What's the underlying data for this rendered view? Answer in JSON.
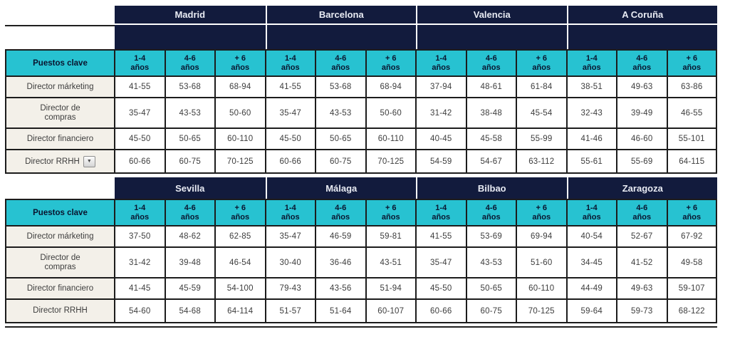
{
  "theme": {
    "header_navy": "#121b3d",
    "header_cyan": "#27c2d1",
    "label_beige": "#f3f0e9",
    "grid_black": "#1c1c1c"
  },
  "icons": {
    "dropdown_arrow": "▼"
  },
  "table": {
    "row_header_label": "Puestos clave",
    "period_headers": [
      "1-4\naños",
      "4-6\naños",
      "+ 6\naños"
    ],
    "sections": [
      {
        "cities": [
          "Madrid",
          "Barcelona",
          "Valencia",
          "A Coruña"
        ],
        "rows": [
          {
            "label": "Director márketing",
            "values": [
              "41-55",
              "53-68",
              "68-94",
              "41-55",
              "53-68",
              "68-94",
              "37-94",
              "48-61",
              "61-84",
              "38-51",
              "49-63",
              "63-86"
            ]
          },
          {
            "label": "Director de\ncompras",
            "values": [
              "35-47",
              "43-53",
              "50-60",
              "35-47",
              "43-53",
              "50-60",
              "31-42",
              "38-48",
              "45-54",
              "32-43",
              "39-49",
              "46-55"
            ]
          },
          {
            "label": "Director financiero",
            "values": [
              "45-50",
              "50-65",
              "60-110",
              "45-50",
              "50-65",
              "60-110",
              "40-45",
              "45-58",
              "55-99",
              "41-46",
              "46-60",
              "55-101"
            ]
          },
          {
            "label": "Director RRHH",
            "has_dropdown": true,
            "values": [
              "60-66",
              "60-75",
              "70-125",
              "60-66",
              "60-75",
              "70-125",
              "54-59",
              "54-67",
              "63-112",
              "55-61",
              "55-69",
              "64-115"
            ]
          }
        ]
      },
      {
        "cities": [
          "Sevilla",
          "Málaga",
          "Bilbao",
          "Zaragoza"
        ],
        "rows": [
          {
            "label": "Director márketing",
            "values": [
              "37-50",
              "48-62",
              "62-85",
              "35-47",
              "46-59",
              "59-81",
              "41-55",
              "53-69",
              "69-94",
              "40-54",
              "52-67",
              "67-92"
            ]
          },
          {
            "label": "Director de\ncompras",
            "values": [
              "31-42",
              "39-48",
              "46-54",
              "30-40",
              "36-46",
              "43-51",
              "35-47",
              "43-53",
              "51-60",
              "34-45",
              "41-52",
              "49-58"
            ]
          },
          {
            "label": "Director financiero",
            "values": [
              "41-45",
              "45-59",
              "54-100",
              "79-43",
              "43-56",
              "51-94",
              "45-50",
              "50-65",
              "60-110",
              "44-49",
              "49-63",
              "59-107"
            ]
          },
          {
            "label": "Director RRHH",
            "values": [
              "54-60",
              "54-68",
              "64-114",
              "51-57",
              "51-64",
              "60-107",
              "60-66",
              "60-75",
              "70-125",
              "59-64",
              "59-73",
              "68-122"
            ]
          }
        ]
      }
    ]
  }
}
